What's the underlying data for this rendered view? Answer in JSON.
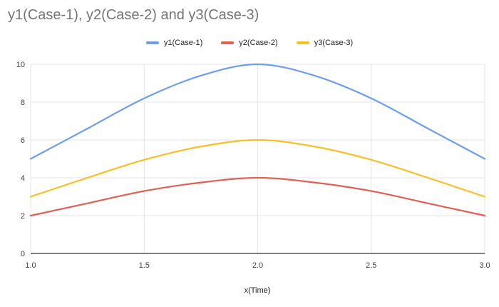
{
  "chart_data": {
    "type": "line",
    "title": "y1(Case-1), y2(Case-2) and y3(Case-3)",
    "xlabel": "x(Time)",
    "ylabel": "",
    "xlim": [
      1.0,
      3.0
    ],
    "ylim": [
      0,
      10
    ],
    "x_ticks": [
      "1.0",
      "1.5",
      "2.0",
      "2.5",
      "3.0"
    ],
    "y_ticks": [
      "0",
      "2",
      "4",
      "6",
      "8",
      "10"
    ],
    "grid": true,
    "legend_position": "top",
    "x": [
      1.0,
      1.25,
      1.5,
      1.75,
      2.0,
      2.25,
      2.5,
      2.75,
      3.0
    ],
    "series": [
      {
        "name": "y1(Case-1)",
        "color": "#6d9eeb",
        "values": [
          5.0,
          6.6,
          8.2,
          9.4,
          10.0,
          9.4,
          8.2,
          6.6,
          5.0
        ]
      },
      {
        "name": "y2(Case-2)",
        "color": "#e06055",
        "values": [
          2.0,
          2.65,
          3.3,
          3.75,
          4.0,
          3.75,
          3.3,
          2.65,
          2.0
        ]
      },
      {
        "name": "y3(Case-3)",
        "color": "#f6c026",
        "values": [
          3.0,
          4.0,
          4.95,
          5.65,
          6.0,
          5.65,
          4.95,
          4.0,
          3.0
        ]
      }
    ]
  }
}
